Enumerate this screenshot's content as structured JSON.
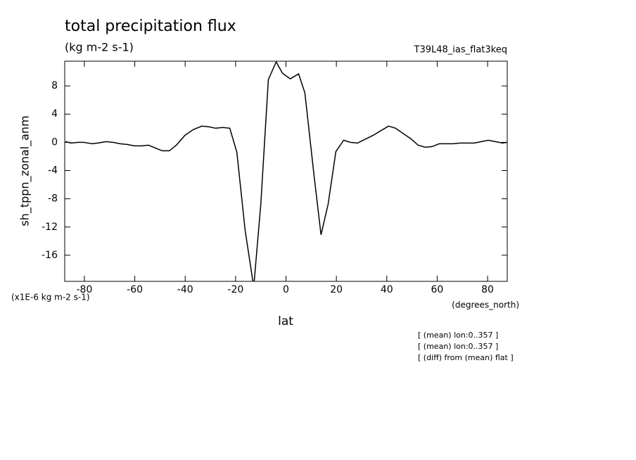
{
  "chart_data": {
    "type": "line",
    "title": "total precipitation flux",
    "subtitle": "(kg m-2 s-1)",
    "dataset": "T39L48_ias_flat3keq",
    "y_label": "sh_tppn_zonal_anm",
    "y_units": "(x1E-6 kg m-2 s-1)",
    "x_units": "(degrees_north)",
    "x_label": "lat",
    "notes": [
      "[ (mean) lon:0..357 ]",
      "[ (mean) lon:0..357 ]",
      "[ (diff) from (mean) flat ]"
    ],
    "x": [
      -87.5,
      -85.3,
      -82.5,
      -80.3,
      -76.9,
      -74.7,
      -71.4,
      -68.6,
      -65.8,
      -63.0,
      -60.2,
      -57.4,
      -54.6,
      -51.8,
      -49.1,
      -46.3,
      -43.5,
      -40.1,
      -36.8,
      -33.4,
      -30.7,
      -27.9,
      -25.1,
      -22.3,
      -19.5,
      -16.2,
      -12.8,
      -10.0,
      -7.0,
      -3.9,
      -1.4,
      1.7,
      5.0,
      7.5,
      11.1,
      13.9,
      16.7,
      19.8,
      22.9,
      25.6,
      28.4,
      31.8,
      34.6,
      37.4,
      40.7,
      43.5,
      46.3,
      49.6,
      52.4,
      55.2,
      58.0,
      60.8,
      63.6,
      66.3,
      69.1,
      71.9,
      74.7,
      77.5,
      80.3,
      83.1,
      85.9,
      87.8
    ],
    "series": [
      {
        "name": "sh_tppn_zonal_anm",
        "color": "#000000",
        "values": [
          0.1,
          -0.1,
          0,
          0,
          -0.2,
          -0.1,
          0.1,
          0,
          -0.2,
          -0.3,
          -0.5,
          -0.5,
          -0.4,
          -0.8,
          -1.2,
          -1.2,
          -0.4,
          1.0,
          1.8,
          2.3,
          2.2,
          2.0,
          2.1,
          2.0,
          -1.4,
          -12.5,
          -20.5,
          -8.8,
          8.9,
          11.4,
          9.8,
          9.0,
          9.7,
          7.0,
          -4.6,
          -13.1,
          -8.8,
          -1.3,
          0.3,
          0,
          -0.1,
          0.5,
          1.0,
          1.6,
          2.3,
          2.0,
          1.3,
          0.5,
          -0.4,
          -0.7,
          -0.6,
          -0.2,
          -0.2,
          -0.2,
          -0.1,
          -0.1,
          -0.1,
          0.1,
          0.3,
          0.1,
          -0.1,
          0
        ]
      }
    ],
    "xlim": [
      -87.8,
      87.8
    ],
    "ylim": [
      -19.7,
      11.5
    ],
    "xticks": [
      -80,
      -60,
      -40,
      -20,
      0,
      20,
      40,
      60,
      80
    ],
    "yticks": [
      -16,
      -12,
      -8,
      -4,
      0,
      4,
      8
    ]
  }
}
